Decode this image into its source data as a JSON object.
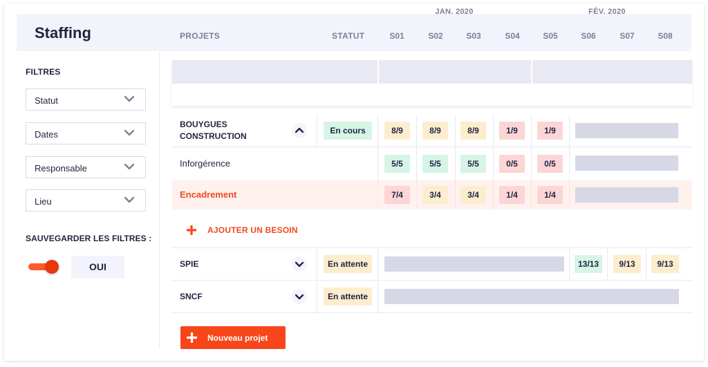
{
  "page": {
    "title": "Staffing"
  },
  "sidebar": {
    "filters_title": "FILTRES",
    "filters": [
      {
        "label": "Statut"
      },
      {
        "label": "Dates"
      },
      {
        "label": "Responsable"
      },
      {
        "label": "Lieu"
      }
    ],
    "save_title": "SAUVEGARDER LES FILTRES :",
    "toggle_on": true,
    "toggle_label": "OUI"
  },
  "table": {
    "months": [
      "JAN. 2020",
      "FÉV. 2020"
    ],
    "col_projects": "PROJETS",
    "col_status": "STATUT",
    "weeks": [
      "S01",
      "S02",
      "S03",
      "S04",
      "S05",
      "S06",
      "S07",
      "S08"
    ],
    "rows": {
      "bouygues": {
        "name": "BOUYGUES CONSTRUCTION",
        "expanded": true,
        "status": "En cours",
        "cells": [
          "8/9",
          "8/9",
          "8/9",
          "1/9",
          "1/9"
        ]
      },
      "inforgerence": {
        "name": "Inforgérence",
        "cells": [
          "5/5",
          "5/5",
          "5/5",
          "0/5",
          "0/5"
        ]
      },
      "encadrement": {
        "name": "Encadrement",
        "cells": [
          "7/4",
          "3/4",
          "3/4",
          "1/4",
          "1/4"
        ]
      },
      "spie": {
        "name": "SPIE",
        "expanded": false,
        "status": "En attente",
        "cells": [
          "13/13",
          "9/13",
          "9/13"
        ]
      },
      "sncf": {
        "name": "SNCF",
        "expanded": false,
        "status": "En attente"
      }
    },
    "add_need": "AJOUTER UN BESOIN"
  },
  "actions": {
    "new_project": "Nouveau projet"
  },
  "colors": {
    "accent": "#f7461a",
    "green": "#d6f5e5",
    "yellow": "#fdedcf",
    "red": "#fcd5d5",
    "bar": "#d6d8e6"
  }
}
